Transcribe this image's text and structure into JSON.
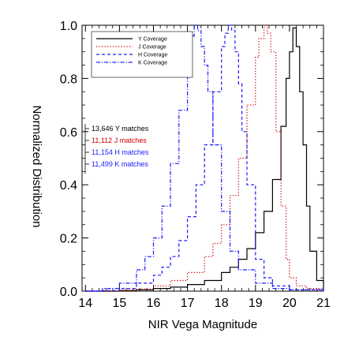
{
  "chart_data": {
    "type": "line",
    "title": "",
    "xlabel": "NIR Vega Magnitude",
    "ylabel": "Normalized Distribution",
    "xlim": [
      13.9,
      21.0
    ],
    "ylim": [
      0.0,
      1.0
    ],
    "xticks": [
      "14",
      "15",
      "16",
      "17",
      "18",
      "19",
      "20",
      "21"
    ],
    "yticks": [
      "0.0",
      "0.2",
      "0.4",
      "0.6",
      "0.8",
      "1.0"
    ],
    "grid": false,
    "legend_position": "top-right",
    "series": [
      {
        "name": "Y Coverage",
        "color": "#000000",
        "line_style": "solid",
        "x": [
          14.0,
          15.0,
          15.5,
          16.0,
          16.5,
          17.0,
          17.5,
          18.0,
          18.25,
          18.5,
          18.75,
          19.0,
          19.25,
          19.5,
          19.75,
          19.9,
          20.0,
          20.1,
          20.2,
          20.3,
          20.4,
          20.5,
          20.6,
          20.8,
          21.0
        ],
        "y": [
          0.0,
          0.002,
          0.005,
          0.01,
          0.015,
          0.025,
          0.04,
          0.07,
          0.09,
          0.12,
          0.16,
          0.22,
          0.3,
          0.42,
          0.62,
          0.8,
          0.9,
          0.99,
          0.92,
          0.75,
          0.55,
          0.32,
          0.15,
          0.04,
          0.0
        ]
      },
      {
        "name": "J Coverage",
        "color": "#cc0000",
        "line_style": "dotted",
        "x": [
          14.0,
          15.0,
          15.5,
          16.0,
          16.5,
          17.0,
          17.5,
          17.75,
          18.0,
          18.25,
          18.5,
          18.75,
          19.0,
          19.1,
          19.25,
          19.35,
          19.45,
          19.6,
          19.75,
          19.9,
          20.0,
          20.2,
          20.5,
          21.0
        ],
        "y": [
          0.0,
          0.003,
          0.008,
          0.02,
          0.04,
          0.07,
          0.13,
          0.18,
          0.25,
          0.36,
          0.5,
          0.7,
          0.88,
          0.95,
          1.0,
          0.97,
          0.9,
          0.6,
          0.32,
          0.12,
          0.05,
          0.02,
          0.01,
          0.0
        ]
      },
      {
        "name": "H Coverage",
        "color": "#1a1aff",
        "line_style": "dashed",
        "x": [
          14.0,
          14.5,
          15.0,
          15.5,
          16.0,
          16.25,
          16.5,
          16.75,
          17.0,
          17.25,
          17.5,
          17.75,
          18.0,
          18.1,
          18.2,
          18.3,
          18.4,
          18.5,
          18.6,
          18.75,
          19.0,
          19.25,
          19.5,
          20.0,
          21.0
        ],
        "y": [
          0.0,
          0.002,
          0.01,
          0.03,
          0.06,
          0.09,
          0.13,
          0.19,
          0.28,
          0.4,
          0.55,
          0.75,
          0.92,
          0.97,
          1.0,
          0.98,
          0.9,
          0.78,
          0.6,
          0.4,
          0.12,
          0.05,
          0.02,
          0.005,
          0.0
        ]
      },
      {
        "name": "K Coverage",
        "color": "#1a1aff",
        "line_style": "dash-dot",
        "x": [
          14.0,
          14.5,
          15.0,
          15.5,
          15.75,
          16.0,
          16.25,
          16.5,
          16.75,
          17.0,
          17.1,
          17.2,
          17.3,
          17.4,
          17.5,
          17.6,
          17.75,
          18.0,
          18.25,
          18.5,
          19.0,
          19.5,
          20.0,
          21.0
        ],
        "y": [
          0.0,
          0.01,
          0.03,
          0.08,
          0.13,
          0.2,
          0.32,
          0.48,
          0.68,
          0.9,
          0.96,
          1.0,
          0.98,
          0.92,
          0.85,
          0.75,
          0.55,
          0.3,
          0.15,
          0.08,
          0.03,
          0.01,
          0.005,
          0.0
        ]
      }
    ],
    "annotations": [
      {
        "text": "13,646 Y matches",
        "color": "#000000"
      },
      {
        "text": "11,112 J matches",
        "color": "#cc0000"
      },
      {
        "text": "11,154 H matches",
        "color": "#1a1aff"
      },
      {
        "text": "11,499 K matches",
        "color": "#1a1aff"
      }
    ]
  }
}
